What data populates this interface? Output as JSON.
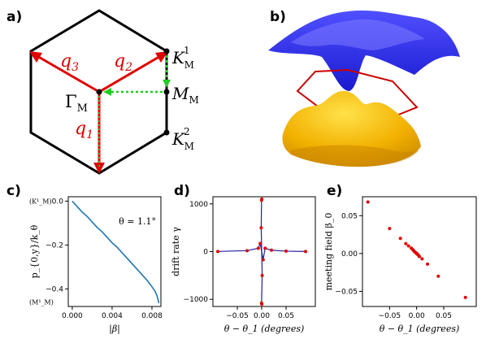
{
  "panels": {
    "a": {
      "label": "a)",
      "q3": "q",
      "q3_sub": "3",
      "q2": "q",
      "q2_sub": "2",
      "q1": "q",
      "q1_sub": "1",
      "gamma": "Γ",
      "gamma_sub": "M",
      "km1": "K",
      "km1_sub": "M",
      "km1_sup": "1",
      "mm": "M",
      "mm_sub": "M",
      "km2": "K",
      "km2_sub": "M",
      "km2_sup": "2"
    },
    "b": {
      "label": "b)"
    },
    "c": {
      "label": "c)",
      "annotation": "θ = 1.1°"
    },
    "d": {
      "label": "d)"
    },
    "e": {
      "label": "e)"
    }
  },
  "chart_data": [
    {
      "panel": "c",
      "type": "line",
      "xlabel": "|β|",
      "ylabel": "p_{0,y}/k_θ",
      "xlim": [
        -0.0004,
        0.0089
      ],
      "ylim": [
        -0.48,
        0.02
      ],
      "xticks": [
        "0.000",
        "0.004",
        "0.008"
      ],
      "xtick_values": [
        0.0,
        0.004,
        0.008
      ],
      "yticks": [
        "0.0",
        "−0.2",
        "−0.4"
      ],
      "ytick_values": [
        0.0,
        -0.2,
        -0.4
      ],
      "side_labels": [
        "(K¹_M)",
        "(M¹_M)"
      ],
      "series": [
        {
          "color": "#1f77b4",
          "x": [
            0.0,
            0.0005,
            0.001,
            0.0015,
            0.002,
            0.0025,
            0.003,
            0.0035,
            0.004,
            0.0045,
            0.005,
            0.0055,
            0.006,
            0.0065,
            0.007,
            0.0075,
            0.008,
            0.0083,
            0.0085,
            0.0087
          ],
          "y": [
            0.0,
            -0.025,
            -0.05,
            -0.07,
            -0.095,
            -0.12,
            -0.14,
            -0.165,
            -0.19,
            -0.21,
            -0.235,
            -0.26,
            -0.285,
            -0.31,
            -0.335,
            -0.36,
            -0.39,
            -0.41,
            -0.43,
            -0.465
          ]
        }
      ]
    },
    {
      "panel": "d",
      "type": "scatter",
      "xlabel": "θ − θ_1 (degrees)",
      "ylabel": "drift rate γ",
      "xlim": [
        -0.1,
        0.11
      ],
      "ylim": [
        -1150,
        1150
      ],
      "xticks": [
        "−0.05",
        "0.00",
        "0.05"
      ],
      "xtick_values": [
        -0.05,
        0.0,
        0.05
      ],
      "yticks": [
        "1000",
        "0",
        "−1000"
      ],
      "ytick_values": [
        1000,
        0,
        -1000
      ],
      "series": [
        {
          "color": "#e00000",
          "x": [
            -0.09,
            -0.03,
            -0.007,
            -0.003,
            -0.001,
            -0.0003,
            -0.0003,
            0.0003,
            0.0003,
            0.001,
            0.003,
            0.007,
            0.02,
            0.05,
            0.09
          ],
          "y": [
            3,
            20,
            70,
            170,
            500,
            1080,
            -1080,
            1100,
            -1100,
            -500,
            -170,
            70,
            30,
            10,
            2
          ]
        }
      ]
    },
    {
      "panel": "e",
      "type": "scatter",
      "xlabel": "θ − θ_1 (degrees)",
      "ylabel": "meeting field β_0",
      "xlim": [
        -0.1,
        0.11
      ],
      "ylim": [
        -0.07,
        0.075
      ],
      "xticks": [
        "−0.05",
        "0.00",
        "0.05"
      ],
      "xtick_values": [
        -0.05,
        0.0,
        0.05
      ],
      "yticks": [
        "0.05",
        "0.00",
        "−0.05"
      ],
      "ytick_values": [
        0.05,
        0.0,
        -0.05
      ],
      "series": [
        {
          "color": "#e00000",
          "x": [
            -0.09,
            -0.05,
            -0.03,
            -0.02,
            -0.015,
            -0.01,
            -0.007,
            -0.005,
            -0.003,
            -0.001,
            0.0,
            0.001,
            0.003,
            0.005,
            0.01,
            0.02,
            0.04,
            0.09
          ],
          "y": [
            0.068,
            0.033,
            0.02,
            0.013,
            0.01,
            0.007,
            0.005,
            0.003,
            0.002,
            0.0007,
            0.0,
            -0.0007,
            -0.002,
            -0.004,
            -0.007,
            -0.014,
            -0.03,
            -0.058
          ]
        }
      ]
    }
  ]
}
